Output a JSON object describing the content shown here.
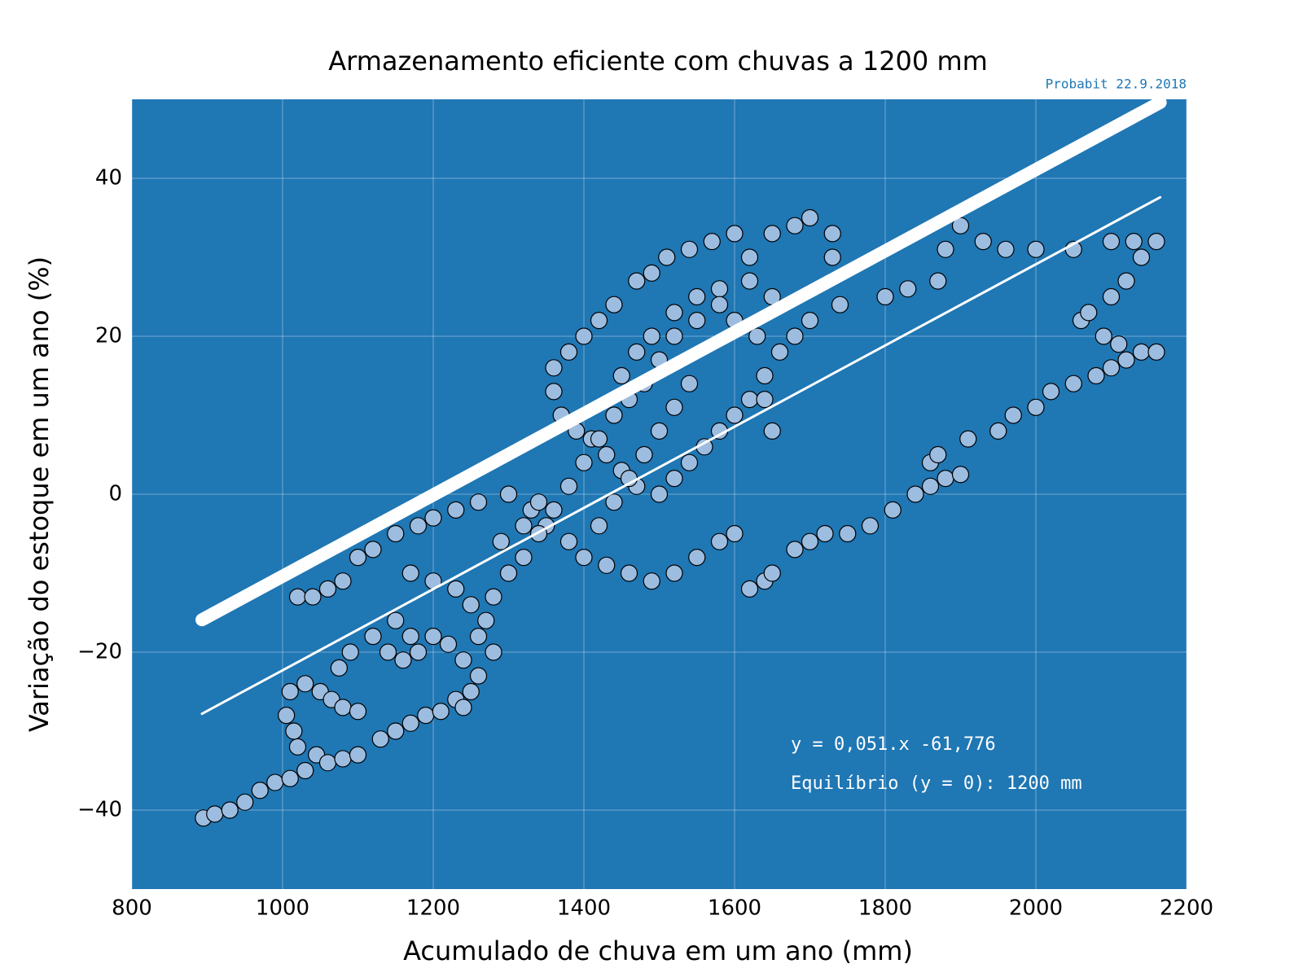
{
  "chart_data": {
    "type": "scatter",
    "title": "Armazenamento eficiente com chuvas a 1200 mm",
    "subtitle": "Probabit 22.9.2018",
    "x_label": "Acumulado de chuva em um ano (mm)",
    "y_label": "Variação do estoque em um ano (%)",
    "annotations": [
      "y = 0,051.x -61,776",
      "Equilíbrio (y = 0): 1200 mm"
    ],
    "background": "#1f77b4",
    "grid": true,
    "xlim": [
      800,
      2200
    ],
    "xticks": [
      800,
      1000,
      1200,
      1400,
      1600,
      1800,
      2000,
      2200
    ],
    "ylim": [
      -50,
      50
    ],
    "yticks": [
      {
        "value": -40,
        "label": "−40"
      },
      {
        "value": -20,
        "label": "−20"
      },
      0,
      20,
      40
    ],
    "series": [
      {
        "color": "#9dbde0",
        "x": [
          895,
          910,
          930,
          950,
          970,
          990,
          1010,
          1030,
          1045,
          1060,
          1080,
          1100,
          1020,
          1015,
          1005,
          1010,
          1030,
          1050,
          1065,
          1080,
          1100,
          1075,
          1090,
          1120,
          1140,
          1160,
          1180,
          1150,
          1170,
          1200,
          1220,
          1240,
          1250,
          1260,
          1280,
          1130,
          1150,
          1170,
          1190,
          1210,
          1230,
          1240,
          1020,
          1040,
          1060,
          1080,
          1100,
          1120,
          1150,
          1180,
          1200,
          1230,
          1260,
          1300,
          1330,
          1350,
          1380,
          1400,
          1430,
          1460,
          1490,
          1520,
          1550,
          1580,
          1600,
          1620,
          1640,
          1650,
          1680,
          1700,
          1720,
          1750,
          1780,
          1810,
          1840,
          1860,
          1880,
          1900,
          1860,
          1870,
          1910,
          1950,
          1970,
          2000,
          2020,
          2050,
          2080,
          2100,
          2120,
          2140,
          2160,
          2110,
          2090,
          2060,
          2070,
          2100,
          2120,
          2140,
          2160,
          2130,
          2100,
          2050,
          2000,
          1960,
          1930,
          1900,
          1880,
          1870,
          1830,
          1800,
          1740,
          1730,
          1730,
          1700,
          1680,
          1650,
          1620,
          1600,
          1570,
          1540,
          1510,
          1490,
          1470,
          1440,
          1420,
          1400,
          1380,
          1360,
          1360,
          1370,
          1390,
          1410,
          1430,
          1450,
          1470,
          1500,
          1520,
          1540,
          1560,
          1580,
          1600,
          1620,
          1640,
          1660,
          1680,
          1700,
          1650,
          1620,
          1580,
          1550,
          1520,
          1500,
          1480,
          1460,
          1440,
          1420,
          1400,
          1380,
          1360,
          1340,
          1320,
          1300,
          1280,
          1270,
          1260,
          1250,
          1230,
          1200,
          1170,
          1290,
          1320,
          1340,
          1450,
          1470,
          1490,
          1520,
          1550,
          1580,
          1600,
          1630,
          1640,
          1650,
          1540,
          1520,
          1500,
          1480,
          1460,
          1440,
          1420
        ],
        "values": [
          -41,
          -40.5,
          -40,
          -39,
          -37.5,
          -36.5,
          -36,
          -35,
          -33,
          -34,
          -33.5,
          -33,
          -32,
          -30,
          -28,
          -25,
          -24,
          -25,
          -26,
          -27,
          -27.5,
          -22,
          -20,
          -18,
          -20,
          -21,
          -20,
          -16,
          -18,
          -18,
          -19,
          -21,
          -25,
          -23,
          -20,
          -31,
          -30,
          -29,
          -28,
          -27.5,
          -26,
          -27,
          -13,
          -13,
          -12,
          -11,
          -8,
          -7,
          -5,
          -4,
          -3,
          -2,
          -1,
          0,
          -2,
          -4,
          -6,
          -8,
          -9,
          -10,
          -11,
          -10,
          -8,
          -6,
          -5,
          -12,
          -11,
          -10,
          -7,
          -6,
          -5,
          -5,
          -4,
          -2,
          0,
          1,
          2,
          2.5,
          4,
          5,
          7,
          8,
          10,
          11,
          13,
          14,
          15,
          16,
          17,
          18,
          18,
          19,
          20,
          22,
          23,
          25,
          27,
          30,
          32,
          32,
          32,
          31,
          31,
          31,
          32,
          34,
          31,
          27,
          26,
          25,
          24,
          30,
          33,
          35,
          34,
          33,
          30,
          33,
          32,
          31,
          30,
          28,
          27,
          24,
          22,
          20,
          18,
          16,
          13,
          10,
          8,
          7,
          5,
          3,
          1,
          0,
          2,
          4,
          6,
          8,
          10,
          12,
          15,
          18,
          20,
          22,
          25,
          27,
          26,
          22,
          20,
          17,
          14,
          12,
          10,
          7,
          4,
          1,
          -2,
          -5,
          -8,
          -10,
          -13,
          -16,
          -18,
          -14,
          -12,
          -11,
          -10,
          -6,
          -4,
          -1,
          15,
          18,
          20,
          23,
          25,
          24,
          22,
          20,
          12,
          8,
          14,
          11,
          8,
          5,
          2,
          -1,
          -4
        ]
      }
    ],
    "lines": [
      {
        "color": "#ffffff",
        "x": [
          893,
          2165
        ],
        "values": [
          -15.9,
          49.6
        ]
      },
      {
        "color": "#ffffff",
        "x": [
          893,
          2165
        ],
        "values": [
          -27.8,
          37.6
        ]
      }
    ]
  }
}
